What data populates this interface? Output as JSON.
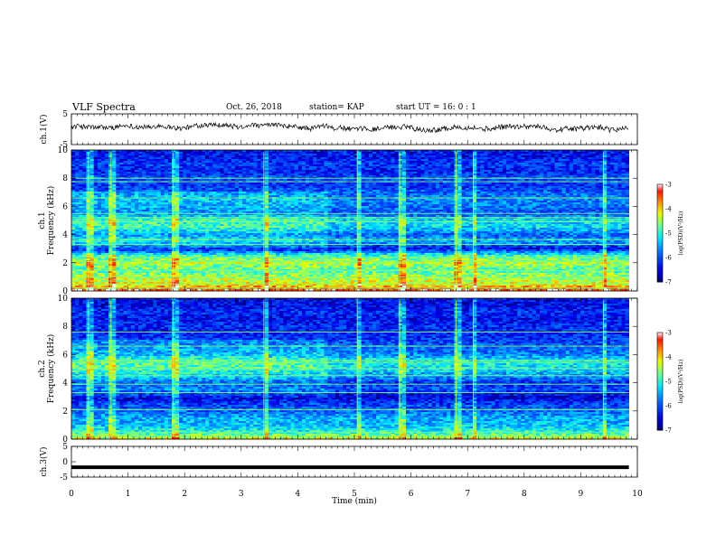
{
  "header": {
    "title": "VLF Spectra",
    "date": "Oct. 26, 2018",
    "station": "station= KAP",
    "start": "start  UT =   16: 0  : 1"
  },
  "colors": {
    "waveform": "#000000",
    "colormap": [
      "#00007f",
      "#0000ff",
      "#0080ff",
      "#00ffff",
      "#80ff80",
      "#ffff00",
      "#ff8000",
      "#ff0000",
      "#ffffff"
    ]
  },
  "chart_data": [
    {
      "type": "line",
      "panel": "ch1-waveform",
      "ylabel": "ch.1(V)",
      "ylim": [
        -5,
        5
      ],
      "yticks": [
        "5",
        "-5"
      ],
      "xlim": [
        0,
        10
      ],
      "trace": "noise",
      "amplitude_range": [
        -1,
        2
      ],
      "trace_end_min": 9.85
    },
    {
      "type": "heatmap",
      "panel": "ch1-spectrogram",
      "ylabel": "ch.1\nFrequency (kHz)",
      "ylim": [
        0,
        10
      ],
      "yticks": [
        "0",
        "2",
        "4",
        "6",
        "8",
        "10"
      ],
      "xlim": [
        0,
        10
      ],
      "data_end_min": 9.85,
      "colorbar": {
        "label": "log(PSD)(V²/Hz)",
        "range": [
          -7,
          -3
        ],
        "ticks": [
          "-3",
          "-4",
          "-5",
          "-6",
          "-7"
        ]
      },
      "profile": [
        {
          "f": 0.2,
          "v": -3.6
        },
        {
          "f": 0.5,
          "v": -4.2
        },
        {
          "f": 1.0,
          "v": -4.5
        },
        {
          "f": 1.5,
          "v": -4.8
        },
        {
          "f": 2.0,
          "v": -4.4
        },
        {
          "f": 2.5,
          "v": -4.9
        },
        {
          "f": 3.0,
          "v": -6.4
        },
        {
          "f": 3.5,
          "v": -5.5
        },
        {
          "f": 4.0,
          "v": -5.9
        },
        {
          "f": 4.5,
          "v": -5.3
        },
        {
          "f": 5.0,
          "v": -5.2
        },
        {
          "f": 5.5,
          "v": -6.0
        },
        {
          "f": 6.0,
          "v": -5.8
        },
        {
          "f": 6.5,
          "v": -5.7
        },
        {
          "f": 7.0,
          "v": -5.9
        },
        {
          "f": 7.5,
          "v": -6.2
        },
        {
          "f": 8.0,
          "v": -6.0
        },
        {
          "f": 8.5,
          "v": -6.3
        },
        {
          "f": 9.0,
          "v": -6.1
        },
        {
          "f": 9.5,
          "v": -6.4
        },
        {
          "f": 10.0,
          "v": -6.3
        }
      ],
      "lines_khz": [
        0.2,
        0.5,
        1.0,
        1.45,
        2.1,
        2.4,
        3.3,
        3.65,
        4.9,
        5.2,
        5.5,
        6.6,
        7.75,
        8.0
      ],
      "bursts_min": [
        0.3,
        0.7,
        1.8,
        3.4,
        5.05,
        5.8,
        6.8,
        7.1,
        9.4
      ]
    },
    {
      "type": "heatmap",
      "panel": "ch2-spectrogram",
      "ylabel": "ch.2\nFrequency (kHz)",
      "ylim": [
        0,
        10
      ],
      "yticks": [
        "0",
        "2",
        "4",
        "6",
        "8",
        "10"
      ],
      "xlim": [
        0,
        10
      ],
      "data_end_min": 9.85,
      "colorbar": {
        "label": "log(PSD)(V²/Hz)",
        "range": [
          -7,
          -3
        ],
        "ticks": [
          "-3",
          "-4",
          "-5",
          "-6",
          "-7"
        ]
      },
      "profile": [
        {
          "f": 0.2,
          "v": -4.5
        },
        {
          "f": 0.5,
          "v": -5.0
        },
        {
          "f": 1.0,
          "v": -5.4
        },
        {
          "f": 1.5,
          "v": -5.5
        },
        {
          "f": 2.0,
          "v": -5.9
        },
        {
          "f": 2.5,
          "v": -6.1
        },
        {
          "f": 3.0,
          "v": -6.6
        },
        {
          "f": 3.5,
          "v": -6.0
        },
        {
          "f": 4.0,
          "v": -6.2
        },
        {
          "f": 4.5,
          "v": -5.6
        },
        {
          "f": 5.0,
          "v": -5.2
        },
        {
          "f": 5.5,
          "v": -5.1
        },
        {
          "f": 6.0,
          "v": -5.7
        },
        {
          "f": 6.5,
          "v": -5.9
        },
        {
          "f": 7.0,
          "v": -6.1
        },
        {
          "f": 7.5,
          "v": -6.3
        },
        {
          "f": 8.0,
          "v": -6.2
        },
        {
          "f": 8.5,
          "v": -6.4
        },
        {
          "f": 9.0,
          "v": -6.2
        },
        {
          "f": 9.5,
          "v": -6.5
        },
        {
          "f": 10.0,
          "v": -6.4
        }
      ],
      "lines_khz": [
        0.2,
        0.5,
        2.1,
        3.3,
        3.9,
        4.5,
        5.0,
        5.45,
        5.6,
        6.6,
        7.6
      ],
      "bursts_min": [
        0.3,
        0.7,
        1.8,
        3.4,
        5.05,
        5.8,
        6.8,
        7.1,
        9.4
      ]
    },
    {
      "type": "line",
      "panel": "ch3-waveform",
      "ylabel": "ch.3(V)",
      "ylim": [
        -5,
        5
      ],
      "yticks": [
        "5",
        "0",
        "-5"
      ],
      "xlim": [
        0,
        10
      ],
      "trace": "flat",
      "value": -1.8,
      "trace_end_min": 9.85
    }
  ],
  "xaxis": {
    "label": "Time (min)",
    "ticks": [
      "0",
      "1",
      "2",
      "3",
      "4",
      "5",
      "6",
      "7",
      "8",
      "9",
      "10"
    ]
  }
}
